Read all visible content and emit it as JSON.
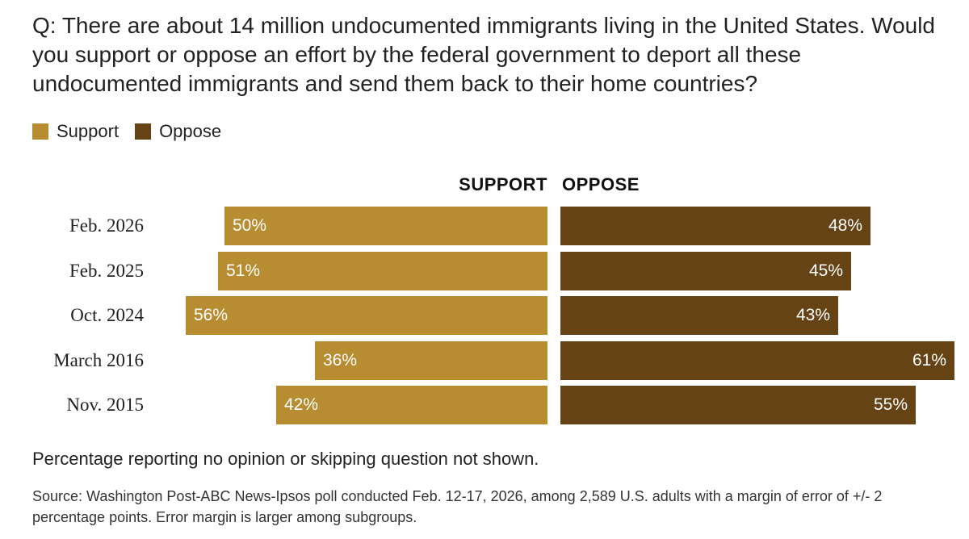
{
  "colors": {
    "support": "#B88C30",
    "oppose": "#654315"
  },
  "header": {
    "question": "Q: There are about 14 million undocumented immigrants living in the United States. Would you support or oppose an effort by the federal government to deport all these undocumented immigrants and send them back to their home countries?"
  },
  "legend": {
    "support": "Support",
    "oppose": "Oppose"
  },
  "chart_data": {
    "type": "bar",
    "orientation": "diverging-horizontal",
    "column_headers": {
      "support": "SUPPORT",
      "oppose": "OPPOSE"
    },
    "categories": [
      "Feb. 2026",
      "Feb. 2025",
      "Oct. 2024",
      "March 2016",
      "Nov. 2015"
    ],
    "series": [
      {
        "name": "Support",
        "values": [
          50,
          51,
          56,
          36,
          42
        ],
        "labels": [
          "50%",
          "51%",
          "56%",
          "36%",
          "42%"
        ]
      },
      {
        "name": "Oppose",
        "values": [
          48,
          45,
          43,
          61,
          55
        ],
        "labels": [
          "48%",
          "45%",
          "43%",
          "61%",
          "55%"
        ]
      }
    ],
    "unit": "%"
  },
  "footer": {
    "note": "Percentage reporting no opinion or skipping question not shown.",
    "source": "Source: Washington Post-ABC News-Ipsos poll conducted Feb. 12-17, 2026, among 2,589 U.S. adults with a margin of error of +/- 2 percentage points. Error margin is larger among subgroups."
  }
}
